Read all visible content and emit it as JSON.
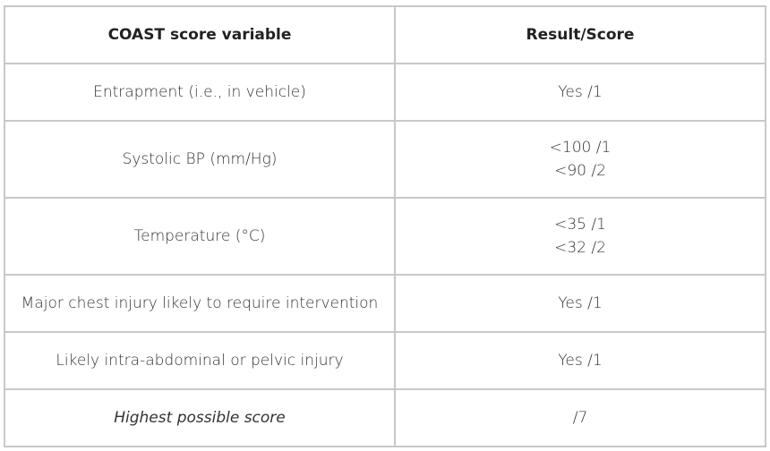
{
  "table": {
    "headers": {
      "variable": "COAST score variable",
      "result": "Result/Score"
    },
    "rows": [
      {
        "variable": "Entrapment (i.e., in vehicle)",
        "result": [
          "Yes /1"
        ]
      },
      {
        "variable": "Systolic BP (mm/Hg)",
        "result": [
          "<100 /1",
          "<90 /2"
        ]
      },
      {
        "variable": "Temperature (°C)",
        "result": [
          "<35 /1",
          "<32 /2"
        ]
      },
      {
        "variable": "Major chest injury likely to require intervention",
        "result": [
          "Yes /1"
        ]
      },
      {
        "variable": "Likely intra-abdominal or pelvic injury",
        "result": [
          "Yes /1"
        ]
      }
    ],
    "footer": {
      "variable": "Highest possible score",
      "result": "/7"
    }
  }
}
